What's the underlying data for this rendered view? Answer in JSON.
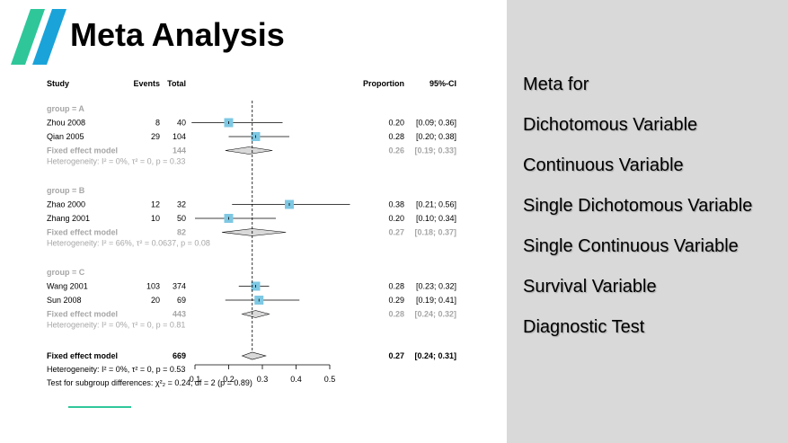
{
  "slide": {
    "title": "Meta Analysis",
    "accent_color": "#2fc79a",
    "logo_colors": [
      "#2fc79a",
      "#1aa3d9"
    ]
  },
  "menu": {
    "items": [
      "Meta for",
      "Dichotomous Variable",
      "Continuous Variable",
      "Single Dichotomous Variable",
      "Single Continuous Variable",
      "Survival Variable",
      "Diagnostic Test"
    ]
  },
  "chart_data": {
    "type": "forest",
    "headers": {
      "study": "Study",
      "events": "Events",
      "total": "Total",
      "proportion": "Proportion",
      "ci": "95%-CI"
    },
    "x_ticks": [
      0.1,
      0.2,
      0.3,
      0.4,
      0.5
    ],
    "xlim": [
      0.1,
      0.5
    ],
    "reference_line": 0.27,
    "groups": [
      {
        "label": "group = A",
        "studies": [
          {
            "study": "Zhou 2008",
            "events": "8",
            "total": "40",
            "est": 0.2,
            "lo": 0.09,
            "hi": 0.36,
            "proportion": "0.20",
            "ci": "[0.09; 0.36]"
          },
          {
            "study": "Qian 2005",
            "events": "29",
            "total": "104",
            "est": 0.28,
            "lo": 0.2,
            "hi": 0.38,
            "proportion": "0.28",
            "ci": "[0.20; 0.38]"
          }
        ],
        "pooled": {
          "label": "Fixed effect model",
          "total": "144",
          "est": 0.26,
          "lo": 0.19,
          "hi": 0.33,
          "proportion": "0.26",
          "ci": "[0.19; 0.33]"
        },
        "heterogeneity": "Heterogeneity: I² = 0%, τ² = 0, p = 0.33"
      },
      {
        "label": "group = B",
        "studies": [
          {
            "study": "Zhao 2000",
            "events": "12",
            "total": "32",
            "est": 0.38,
            "lo": 0.21,
            "hi": 0.56,
            "proportion": "0.38",
            "ci": "[0.21; 0.56]"
          },
          {
            "study": "Zhang 2001",
            "events": "10",
            "total": "50",
            "est": 0.2,
            "lo": 0.1,
            "hi": 0.34,
            "proportion": "0.20",
            "ci": "[0.10; 0.34]"
          }
        ],
        "pooled": {
          "label": "Fixed effect model",
          "total": "82",
          "est": 0.27,
          "lo": 0.18,
          "hi": 0.37,
          "proportion": "0.27",
          "ci": "[0.18; 0.37]"
        },
        "heterogeneity": "Heterogeneity: I² = 66%, τ² = 0.0637, p = 0.08"
      },
      {
        "label": "group = C",
        "studies": [
          {
            "study": "Wang 2001",
            "events": "103",
            "total": "374",
            "est": 0.28,
            "lo": 0.23,
            "hi": 0.32,
            "proportion": "0.28",
            "ci": "[0.23; 0.32]"
          },
          {
            "study": "Sun 2008",
            "events": "20",
            "total": "69",
            "est": 0.29,
            "lo": 0.19,
            "hi": 0.41,
            "proportion": "0.29",
            "ci": "[0.19; 0.41]"
          }
        ],
        "pooled": {
          "label": "Fixed effect model",
          "total": "443",
          "est": 0.28,
          "lo": 0.24,
          "hi": 0.32,
          "proportion": "0.28",
          "ci": "[0.24; 0.32]"
        },
        "heterogeneity": "Heterogeneity: I² = 0%, τ² = 0, p = 0.81"
      }
    ],
    "overall": {
      "label": "Fixed effect model",
      "total": "669",
      "est": 0.27,
      "lo": 0.24,
      "hi": 0.31,
      "proportion": "0.27",
      "ci": "[0.24; 0.31]"
    },
    "overall_heterogeneity": "Heterogeneity: I² = 0%, τ² = 0, p = 0.53",
    "subgroup_test": "Test for subgroup differences: χ²₂ = 0.24, df = 2 (p = 0.89)",
    "box_color": "#7ec8e3",
    "diamond_color": "#d9d9d9"
  }
}
